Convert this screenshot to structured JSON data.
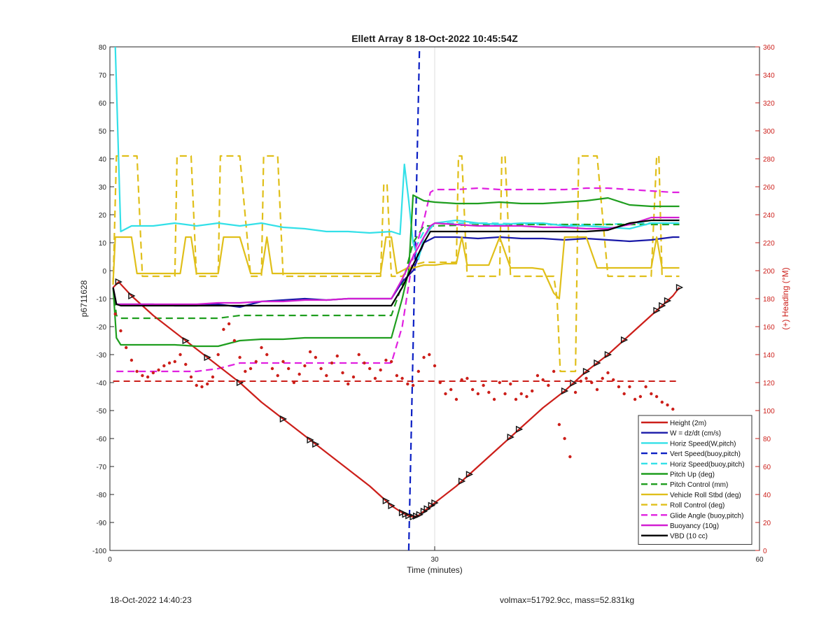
{
  "chart_data": {
    "type": "line",
    "title": "Ellett Array 8 18-Oct-2022 10:45:54Z",
    "xlabel": "Time (minutes)",
    "ylabel": "p6711628",
    "y2label": "(+) Heading (°M)",
    "xlim": [
      0,
      60
    ],
    "ylim": [
      -100,
      80
    ],
    "y2lim": [
      0,
      360
    ],
    "xticks": [
      0,
      30,
      60
    ],
    "yticks": [
      -100,
      -90,
      -80,
      -70,
      -60,
      -50,
      -40,
      -30,
      -20,
      -10,
      0,
      10,
      20,
      30,
      40,
      50,
      60,
      70,
      80
    ],
    "y2ticks": [
      0,
      20,
      40,
      60,
      80,
      100,
      120,
      140,
      160,
      180,
      200,
      220,
      240,
      260,
      280,
      300,
      320,
      340,
      360
    ],
    "grid": "x-only",
    "legend_position": "bottom-right",
    "colors": {
      "height": "#cc1f1a",
      "w": "#1a1aa8",
      "horiz": "#33e0e8",
      "pitch": "#1f9e1f",
      "roll": "#e0bf1a",
      "glide": "#e020e0",
      "buoy": "#d21ed2",
      "vbd": "#000000",
      "right_axis": "#cc1f1a",
      "vert_line": "#0b1fc4"
    },
    "series": [
      {
        "name": "Height (2m)",
        "color": "#cc1f1a",
        "style": "solid",
        "markers": "triangle",
        "x": [
          0.3,
          0.8,
          2,
          4,
          6,
          8,
          10,
          12,
          14,
          16,
          18,
          20,
          22,
          24,
          26,
          27,
          27.5,
          28,
          28.5,
          29,
          30,
          32,
          34,
          36,
          38,
          40,
          42,
          44,
          46,
          48,
          50,
          52,
          52.6
        ],
        "y": [
          -6,
          -4,
          -9,
          -16,
          -22,
          -28,
          -34,
          -40,
          -47,
          -53,
          -59,
          -65,
          -71,
          -77,
          -84,
          -86.5,
          -87.5,
          -88,
          -87.5,
          -86,
          -83,
          -77,
          -70,
          -63,
          -56,
          -49,
          -43,
          -36,
          -30,
          -23,
          -16,
          -9,
          -6
        ]
      },
      {
        "name": "W = dz/dt (cm/s)",
        "color": "#1a1aa8",
        "style": "solid",
        "x": [
          0.3,
          0.6,
          1,
          2,
          4,
          6,
          8,
          10,
          12,
          14,
          16,
          18,
          20,
          22,
          24,
          26,
          27,
          28,
          28.5,
          29,
          30,
          32,
          34,
          36,
          38,
          40,
          42,
          44,
          46,
          48,
          50,
          52,
          52.6
        ],
        "y": [
          -6,
          -12,
          -12,
          -12,
          -12,
          -12.5,
          -12.5,
          -12,
          -13,
          -11,
          -10.5,
          -10,
          -10.5,
          -10,
          -10,
          -10,
          -4,
          0,
          5,
          10,
          12,
          12,
          11.5,
          12,
          11.5,
          11.5,
          11,
          11.5,
          11,
          10.5,
          11,
          12,
          12
        ]
      },
      {
        "name": "Horiz Speed(W,pitch)",
        "color": "#33e0e8",
        "style": "solid",
        "x": [
          0.5,
          0.8,
          1,
          2,
          4,
          6,
          8,
          10,
          12,
          14,
          16,
          18,
          20,
          22,
          24,
          26,
          26.8,
          27.2,
          27.6,
          28,
          28.5,
          29,
          30,
          32,
          34,
          36,
          38,
          40,
          42,
          44,
          46,
          48,
          50,
          52,
          52.6
        ],
        "y": [
          80,
          40,
          14,
          16,
          16,
          17,
          16,
          17,
          16,
          17,
          15.5,
          15,
          14,
          14,
          13.5,
          14,
          13,
          38,
          25,
          10,
          4,
          12,
          17,
          18,
          17,
          16.5,
          17,
          17,
          16,
          16,
          15.5,
          15,
          17,
          17,
          17
        ]
      },
      {
        "name": "Vert Speed(buoy,pitch)",
        "color": "#0b1fc4",
        "style": "dashed",
        "x": [
          27.6,
          28.6
        ],
        "y": [
          -100,
          80
        ]
      },
      {
        "name": "Horiz Speed(buoy,pitch)",
        "color": "#33e0e8",
        "style": "dashed",
        "x": [
          28.2,
          29,
          30,
          35,
          40,
          45,
          50,
          52.6
        ],
        "y": [
          8,
          14,
          17,
          17,
          16.5,
          16.5,
          17,
          17
        ]
      },
      {
        "name": "Pitch Up (deg)",
        "color": "#1f9e1f",
        "style": "solid",
        "x": [
          0.3,
          0.6,
          1,
          2,
          4,
          6,
          8,
          10,
          11,
          12,
          14,
          16,
          18,
          20,
          22,
          24,
          26,
          27,
          27.6,
          28,
          29,
          30,
          32,
          34,
          36,
          38,
          40,
          42,
          44,
          46,
          48,
          50,
          52,
          52.6
        ],
        "y": [
          -6,
          -24,
          -26.5,
          -26.5,
          -26.5,
          -26.5,
          -27,
          -27,
          -26,
          -25,
          -24.5,
          -24.5,
          -24,
          -24,
          -24,
          -24,
          -24,
          -10,
          0,
          27,
          25,
          24.5,
          24,
          24,
          24.5,
          24,
          24,
          24.5,
          25,
          26,
          23.5,
          23,
          23,
          23
        ]
      },
      {
        "name": "Pitch Control (mm)",
        "color": "#1f9e1f",
        "style": "dashed",
        "x": [
          0.3,
          0.6,
          1,
          6,
          8,
          10,
          12,
          14,
          16,
          18,
          20,
          22,
          24,
          26,
          27,
          28,
          29,
          30,
          35,
          40,
          45,
          50,
          52.6
        ],
        "y": [
          -6,
          -16,
          -17,
          -17,
          -17,
          -17,
          -16,
          -16,
          -16,
          -16,
          -16,
          -16,
          -16,
          -16,
          -5,
          10,
          16,
          16,
          16.5,
          16.5,
          16.5,
          16.5,
          16.5
        ]
      },
      {
        "name": "Vehicle Roll Stbd (deg)",
        "color": "#e0bf1a",
        "style": "solid",
        "x": [
          0.3,
          0.5,
          1,
          2,
          2.5,
          3,
          4,
          5,
          6,
          6.5,
          7,
          7.5,
          8,
          9,
          10,
          10.5,
          11,
          12,
          13,
          13.5,
          14,
          14.5,
          15,
          16,
          18,
          20,
          22,
          24,
          25,
          25.5,
          26,
          26.5,
          27,
          27.5,
          28,
          29,
          30,
          31,
          32,
          32.5,
          33,
          34,
          35,
          36,
          37,
          37.5,
          38,
          39,
          40,
          41,
          41.5,
          42,
          43,
          44,
          45,
          46,
          46.5,
          47,
          48,
          49,
          50,
          50.5,
          51,
          51.5,
          52,
          52.6
        ],
        "y": [
          -4,
          12,
          12,
          12,
          -1,
          -1,
          -1,
          -1,
          -1,
          -1,
          12,
          12,
          -1,
          -1,
          -1,
          12,
          12,
          12,
          -1,
          -1,
          -1,
          12,
          -1,
          -1,
          -1,
          -1,
          -1,
          -1,
          -1,
          12,
          12,
          -1,
          0,
          1,
          1,
          2,
          2,
          2.5,
          2.5,
          12,
          2,
          2,
          2,
          12,
          1,
          1,
          1,
          1,
          0.5,
          -8,
          -10,
          12,
          12,
          12,
          1,
          1,
          1,
          1,
          1,
          1,
          1,
          12,
          1,
          1,
          1,
          1
        ]
      },
      {
        "name": "Roll Control (deg)",
        "color": "#e0bf1a",
        "style": "dashed",
        "x": [
          0.3,
          0.6,
          0.9,
          1.5,
          2,
          2.5,
          3,
          5,
          6,
          6.2,
          6.5,
          7,
          7.5,
          8,
          9,
          10,
          10.2,
          10.5,
          11,
          11.5,
          12,
          13,
          14,
          14.2,
          14.5,
          15,
          15.5,
          16,
          18,
          20,
          22,
          24,
          25,
          25.3,
          25.6,
          26,
          27,
          28,
          29,
          30,
          31,
          32,
          32.2,
          32.5,
          33,
          34,
          35,
          36,
          36.2,
          36.5,
          37,
          38,
          40,
          41,
          41.3,
          41.6,
          42,
          42.3,
          42.6,
          43,
          43.3,
          44,
          45,
          46,
          46.2,
          46.5,
          47,
          48,
          50,
          50.5,
          50.7,
          51,
          52,
          52.6
        ],
        "y": [
          -5,
          41,
          41,
          41,
          41,
          41,
          -2,
          -2,
          -2,
          41,
          41,
          41,
          41,
          -2,
          -2,
          -2,
          41,
          41,
          41,
          41,
          41,
          -2,
          -2,
          41,
          41,
          41,
          41,
          -2,
          -2,
          -2,
          -2,
          -2,
          -2,
          31,
          31,
          -2,
          -2,
          2,
          3,
          3,
          3,
          3,
          41,
          41,
          -2,
          -2,
          -2,
          -2,
          41,
          41,
          -2,
          -2,
          -2,
          -2,
          -10,
          -36,
          -36,
          -36,
          -36,
          -36,
          41,
          41,
          41,
          -2,
          -2,
          -2,
          -2,
          -2,
          -2,
          41,
          41,
          -2,
          -2,
          -2
        ]
      },
      {
        "name": "Glide Angle (buoy,pitch)",
        "color": "#e020e0",
        "style": "dashed",
        "x": [
          0.6,
          1,
          2,
          4,
          6,
          8,
          10,
          11,
          12,
          14,
          16,
          18,
          20,
          22,
          24,
          26,
          27,
          28,
          29,
          29.6,
          30,
          32,
          34,
          36,
          38,
          40,
          42,
          44,
          46,
          48,
          50,
          52,
          52.6
        ],
        "y": [
          -36,
          -36,
          -36,
          -36,
          -36,
          -36,
          -35,
          -34,
          -33,
          -33,
          -33,
          -33,
          -33,
          -33,
          -33,
          -33,
          -20,
          5,
          18,
          28,
          29,
          29,
          29.5,
          29,
          29,
          29,
          29,
          29.5,
          29.5,
          29,
          28.5,
          28,
          28
        ]
      },
      {
        "name": "Buoyancy (10g)",
        "color": "#d21ed2",
        "style": "solid",
        "x": [
          0.3,
          0.6,
          1,
          2,
          4,
          6,
          8,
          10,
          12,
          14,
          16,
          18,
          20,
          22,
          24,
          26,
          27,
          28,
          29,
          29.6,
          30,
          32,
          34,
          36,
          38,
          40,
          42,
          44,
          46,
          48,
          50,
          52,
          52.6
        ],
        "y": [
          -6,
          -12,
          -12,
          -12,
          -12,
          -12,
          -12,
          -11.5,
          -11.5,
          -11,
          -11,
          -10.5,
          -10.5,
          -10,
          -10,
          -10,
          -3,
          5,
          12,
          16,
          17,
          16.5,
          16,
          16,
          16,
          15.5,
          15.5,
          15,
          15,
          16.5,
          19,
          19,
          19
        ]
      },
      {
        "name": "VBD (10 cc)",
        "color": "#000000",
        "style": "solid",
        "x": [
          0.3,
          0.6,
          1,
          2,
          4,
          6,
          8,
          10,
          12,
          14,
          16,
          18,
          20,
          22,
          24,
          26,
          27,
          28,
          29,
          29.6,
          30,
          32,
          34,
          36,
          38,
          40,
          42,
          44,
          46,
          48,
          50,
          52,
          52.6
        ],
        "y": [
          -6,
          -12,
          -12.5,
          -12.5,
          -12.5,
          -12.5,
          -12.5,
          -12.5,
          -12.5,
          -12.5,
          -12.5,
          -12.5,
          -12.5,
          -12.5,
          -12.5,
          -12.5,
          -6,
          2,
          10,
          14,
          14,
          14,
          14,
          14,
          14,
          14,
          14,
          14,
          14.5,
          17,
          18,
          18,
          18
        ]
      }
    ],
    "heading_series": {
      "axis": "right",
      "color": "#cc1f1a",
      "reference_line": 121,
      "x": [
        0.5,
        1,
        1.5,
        2,
        2.5,
        3,
        3.5,
        4,
        4.5,
        5,
        5.5,
        6,
        6.5,
        7,
        7.5,
        8,
        8.5,
        9,
        9.5,
        10,
        10.5,
        11,
        11.5,
        12,
        12.5,
        13,
        13.5,
        14,
        14.5,
        15,
        15.5,
        16,
        16.5,
        17,
        17.5,
        18,
        18.5,
        19,
        19.5,
        20,
        20.5,
        21,
        21.5,
        22,
        22.5,
        23,
        23.5,
        24,
        24.5,
        25,
        25.5,
        26,
        26.5,
        27,
        27.5,
        28,
        28.5,
        29,
        29.5,
        30,
        30.5,
        31,
        31.5,
        32,
        32.5,
        33,
        33.5,
        34,
        34.5,
        35,
        35.5,
        36,
        36.5,
        37,
        37.5,
        38,
        38.5,
        39,
        39.5,
        40,
        40.5,
        41,
        41.5,
        42,
        42.5,
        43,
        43.5,
        44,
        44.5,
        45,
        45.5,
        46,
        46.5,
        47,
        47.5,
        48,
        48.5,
        49,
        49.5,
        50,
        50.5,
        51,
        51.5,
        52
      ],
      "y": [
        169,
        157,
        145,
        136,
        128,
        125,
        124,
        127,
        129,
        132,
        134,
        135,
        140,
        133,
        124,
        118,
        117,
        119,
        124,
        140,
        158,
        162,
        150,
        138,
        128,
        130,
        135,
        145,
        140,
        130,
        125,
        135,
        130,
        120,
        126,
        132,
        142,
        138,
        130,
        125,
        134,
        139,
        127,
        119,
        124,
        140,
        134,
        130,
        123,
        129,
        136,
        135,
        125,
        123,
        119,
        118,
        128,
        138,
        140,
        132,
        120,
        112,
        115,
        108,
        122,
        123,
        115,
        112,
        118,
        113,
        108,
        120,
        112,
        119,
        108,
        112,
        110,
        114,
        125,
        122,
        118,
        128,
        90,
        80,
        67,
        113,
        121,
        123,
        120,
        115,
        123,
        127,
        122,
        117,
        112,
        117,
        108,
        110,
        117,
        112,
        110,
        106,
        104,
        101
      ]
    },
    "footer_left": "18-Oct-2022 14:40:23",
    "footer_right": "volmax=51792.9cc, mass=52.831kg"
  }
}
